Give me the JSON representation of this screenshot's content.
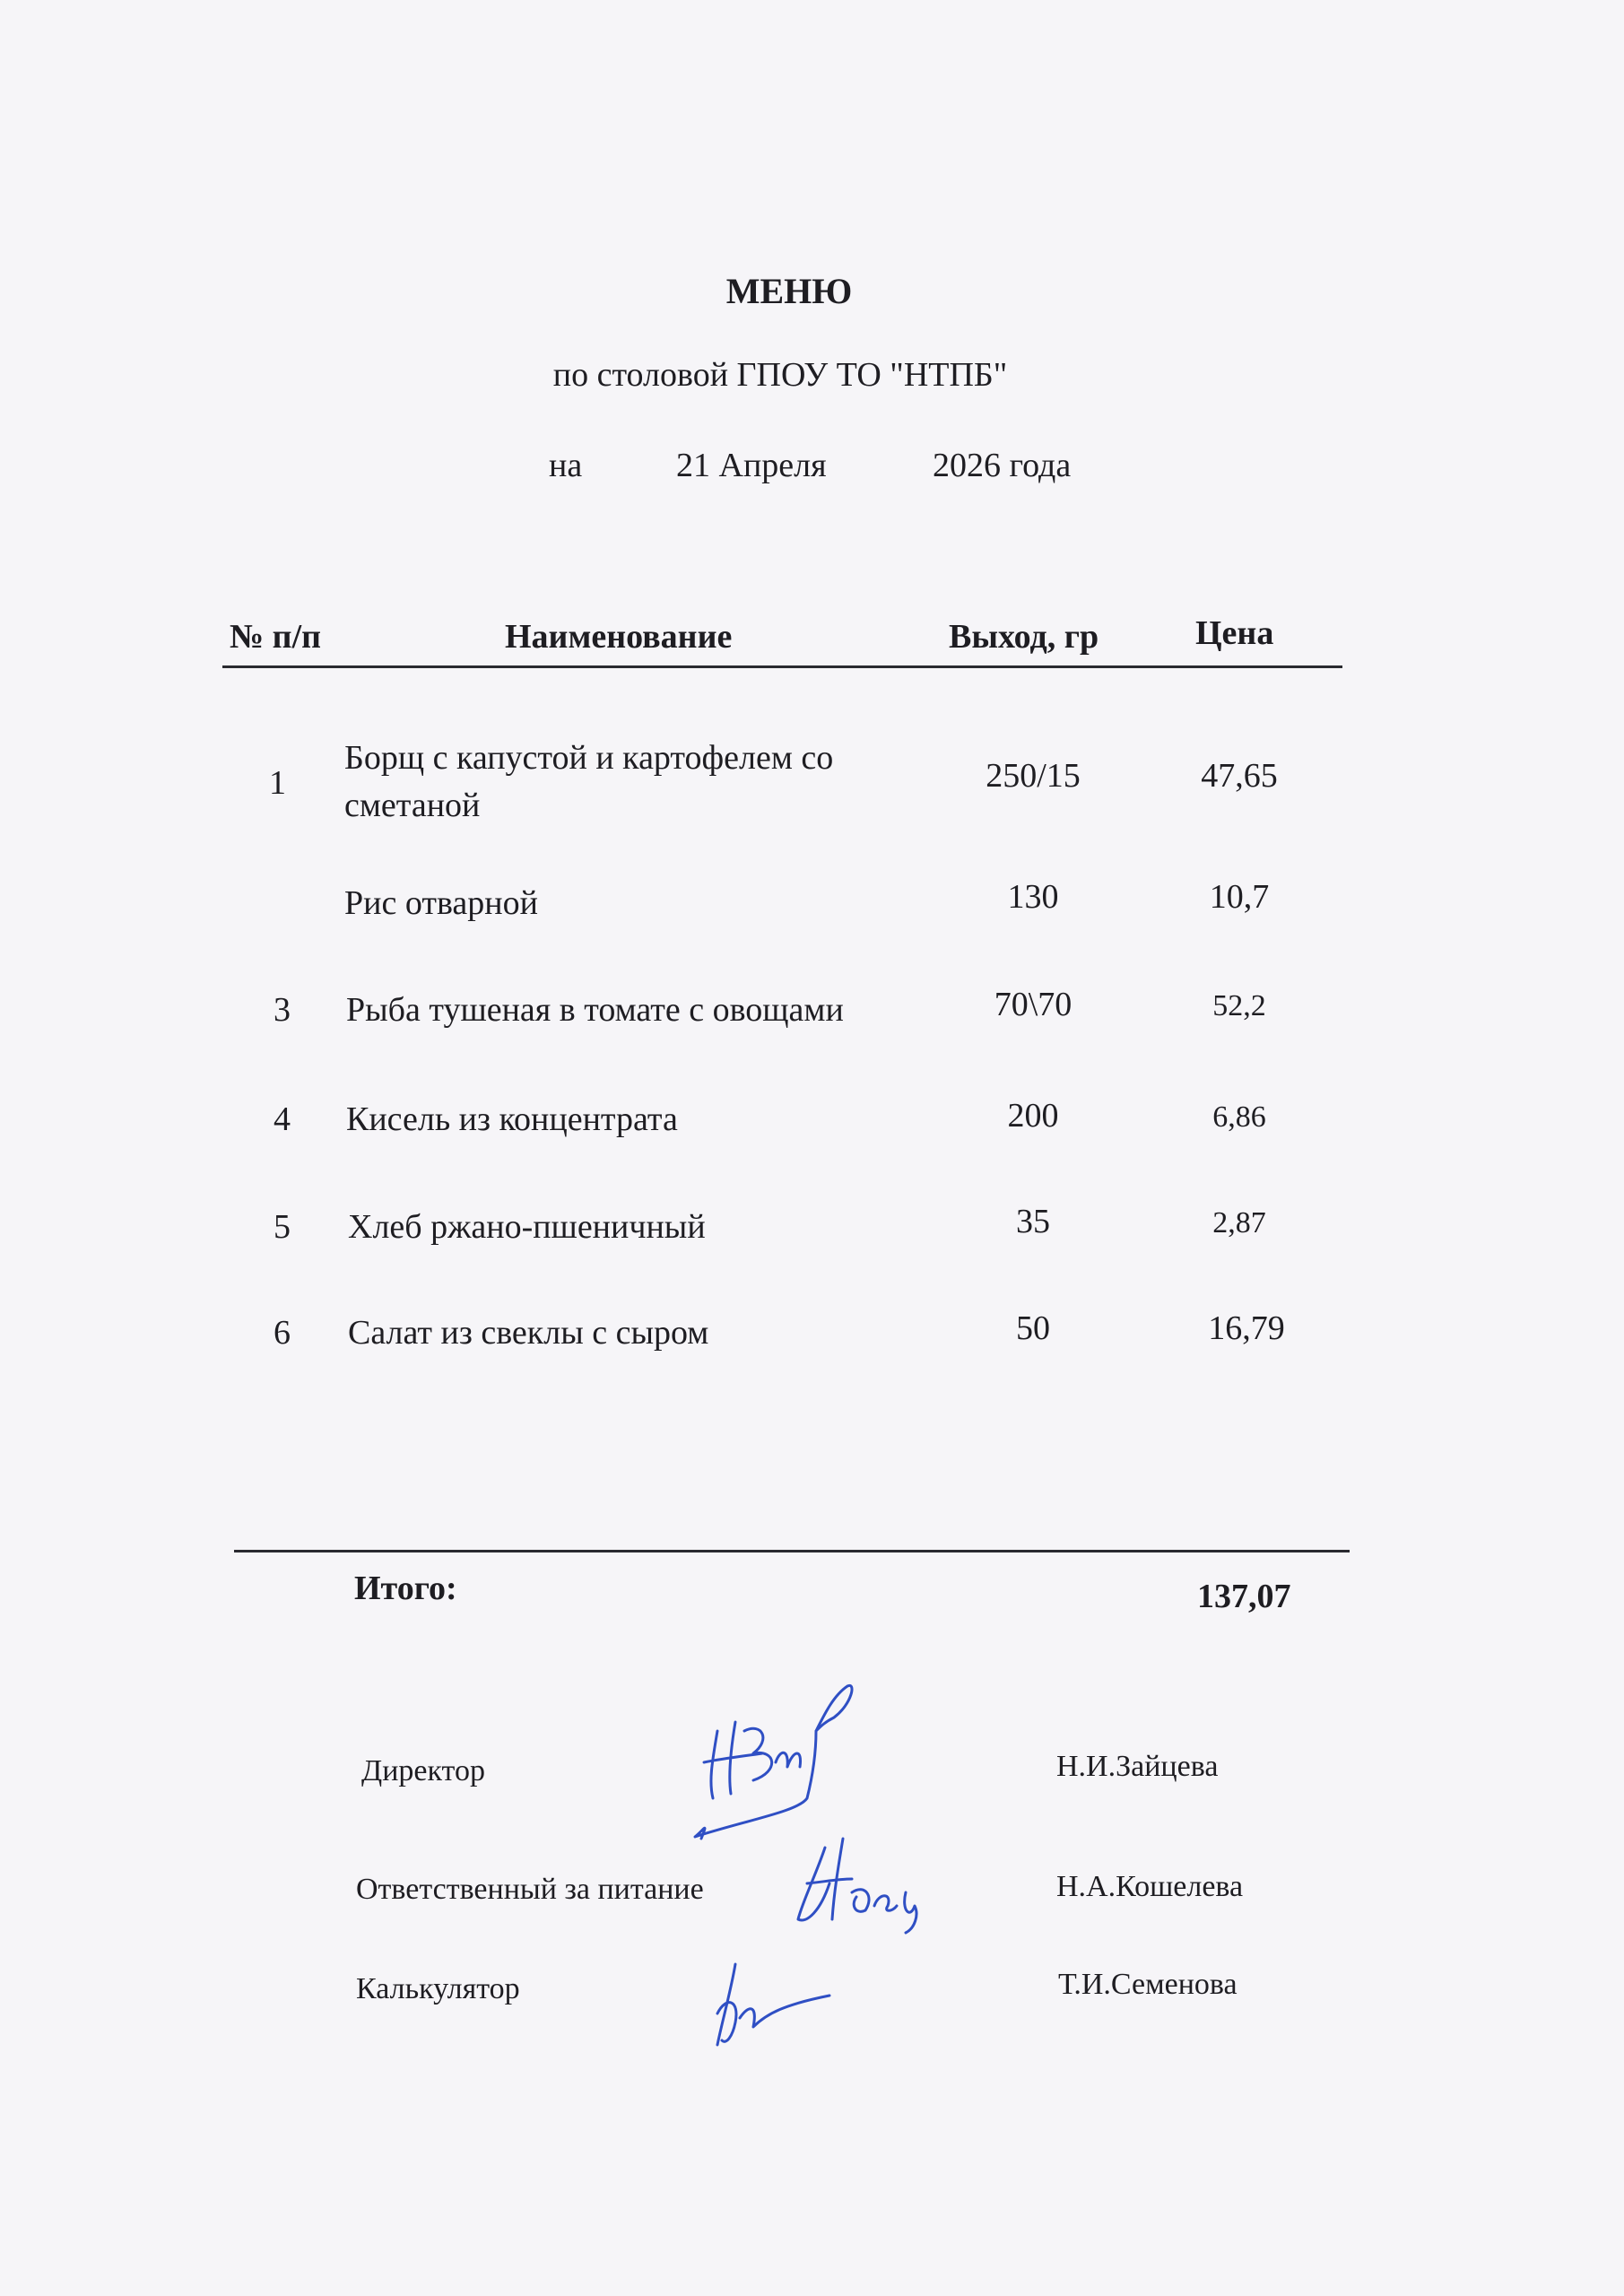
{
  "title": "МЕНЮ",
  "subtitle": "по столовой ГПОУ ТО \"НТПБ\"",
  "date_line": {
    "prefix": "на",
    "day_month": "21 Апреля",
    "year": "2026 года"
  },
  "table": {
    "headers": [
      "№ п/п",
      "Наименование",
      "Выход, гр",
      "Цена"
    ],
    "rows": [
      {
        "num": "1",
        "name_line1": "Борщ с капустой и картофелем со",
        "name_line2": "сметаной",
        "yield": "250/15",
        "price": "47,65"
      },
      {
        "num": "",
        "name_line1": "Рис отварной",
        "yield": "130",
        "price": "10,7"
      },
      {
        "num": "3",
        "name_line1": "Рыба тушеная в томате с овощами",
        "yield": "70\\70",
        "price": "52,2"
      },
      {
        "num": "4",
        "name_line1": "Кисель из концентрата",
        "yield": "200",
        "price": "6,86"
      },
      {
        "num": "5",
        "name_line1": "Хлеб ржано-пшеничный",
        "yield": "35",
        "price": "2,87"
      },
      {
        "num": "6",
        "name_line1": "Салат из свеклы с сыром",
        "yield": "50",
        "price": "16,79"
      }
    ]
  },
  "total": {
    "label": "Итого:",
    "value": "137,07"
  },
  "signatures": [
    {
      "role": "Директор",
      "name": "Н.И.Зайцева"
    },
    {
      "role": "Ответственный за питание",
      "name": "Н.А.Кошелева"
    },
    {
      "role": "Калькулятор",
      "name": "Т.И.Семенова"
    }
  ],
  "colors": {
    "ink": "#1e1d22",
    "signature_ink": "#2f4fc4",
    "paper": "#f6f5f8"
  }
}
